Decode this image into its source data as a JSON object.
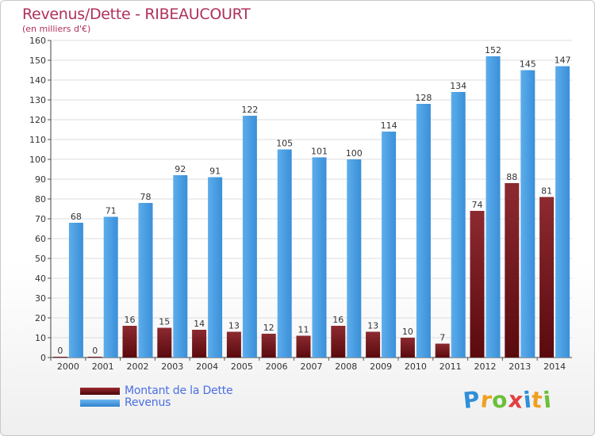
{
  "header": {
    "title": "Revenus/Dette - RIBEAUCOURT",
    "subtitle": "(en milliers d'€)"
  },
  "chart_data": {
    "type": "bar",
    "title": "Revenus/Dette - RIBEAUCOURT",
    "ylabel": "(en milliers d'€)",
    "xlabel": "",
    "ylim": [
      0,
      160
    ],
    "ytick_step": 10,
    "grid": true,
    "legend_position": "bottom-left",
    "categories": [
      "2000",
      "2001",
      "2002",
      "2003",
      "2004",
      "2005",
      "2006",
      "2007",
      "2008",
      "2009",
      "2010",
      "2011",
      "2012",
      "2013",
      "2014"
    ],
    "series": [
      {
        "name": "Montant de la Dette",
        "color": "#7a1c22",
        "values": [
          0,
          0,
          16,
          15,
          14,
          13,
          12,
          11,
          16,
          13,
          10,
          7,
          74,
          88,
          81
        ]
      },
      {
        "name": "Revenus",
        "color": "#3f97e0",
        "values": [
          68,
          71,
          78,
          92,
          91,
          122,
          105,
          101,
          100,
          114,
          128,
          134,
          152,
          145,
          147
        ]
      }
    ]
  },
  "legend": {
    "items": [
      {
        "label": "Montant de la Dette",
        "color": "#6b0f14"
      },
      {
        "label": "Revenus",
        "color": "#3f97e0"
      }
    ]
  },
  "logo": {
    "letters": [
      "P",
      "r",
      "o",
      "x",
      "i",
      "t",
      "i"
    ],
    "colors": [
      "#2f8fd8",
      "#f0a020",
      "#6cbf3a",
      "#e04040",
      "#2f8fd8",
      "#f0a020",
      "#6cbf3a"
    ]
  }
}
